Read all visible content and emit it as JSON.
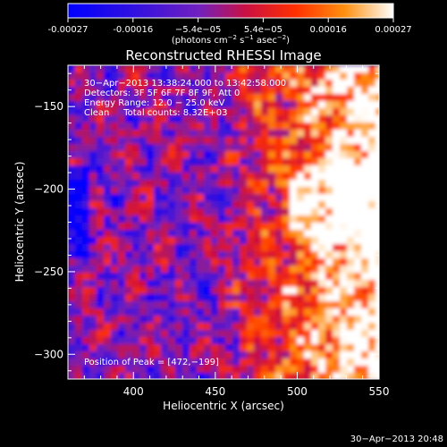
{
  "chart_data": {
    "type": "heatmap",
    "title": "Reconstructed RHESSI Image",
    "xlabel": "Heliocentric X (arcsec)",
    "ylabel": "Heliocentric Y (arcsec)",
    "xlim": [
      360,
      550
    ],
    "ylim": [
      -315,
      -125
    ],
    "xticks": [
      400,
      450,
      500,
      550
    ],
    "yticks": [
      -150,
      -200,
      -250,
      -300
    ],
    "colorbar": {
      "ticks": [
        "-0.00027",
        "-0.00016",
        "−5.4e−05",
        "5.4e−05",
        "0.00016",
        "0.00027"
      ],
      "range": [
        -0.00027,
        0.00027
      ],
      "units_text": "(photons cm",
      "units_exp1": "−2",
      "units_mid": " s",
      "units_exp2": "−1",
      "units_end": " asec",
      "units_exp3": "−2",
      "units_close": ")",
      "colors": [
        "#0000ff",
        "#7020c0",
        "#cc1040",
        "#ff6000",
        "#ffb020",
        "#ffffff"
      ]
    },
    "annotations": [
      "30−Apr−2013 13:38:24.000 to 13:42:58.000",
      "Detectors: 3F 5F 6F 7F 8F 9F, Att 0",
      "Energy Range: 12.0 − 25.0 keV",
      "Clean     Total counts: 8.32E+03"
    ],
    "peak_label": "Position of Peak = [472,−199]",
    "timestamp": "30−Apr−2013 20:48"
  }
}
